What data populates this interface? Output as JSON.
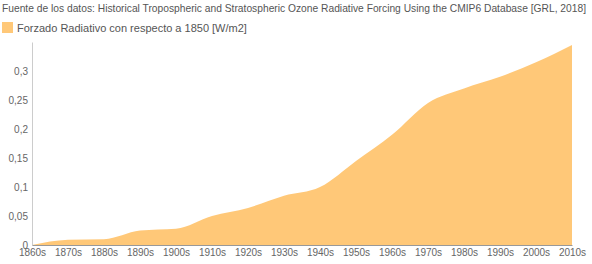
{
  "chart_data": {
    "type": "area",
    "title": "Fuente de los datos: Historical Tropospheric and Stratospheric Ozone Radiative Forcing Using the CMIP6 Database [GRL, 2018]",
    "categories": [
      "1860s",
      "1870s",
      "1880s",
      "1890s",
      "1900s",
      "1910s",
      "1920s",
      "1930s",
      "1940s",
      "1950s",
      "1960s",
      "1970s",
      "1980s",
      "1990s",
      "2000s",
      "2010s"
    ],
    "series": [
      {
        "name": "Forzado Radiativo con respecto a 1850 [W/m2]",
        "color": "#ffc878",
        "values": [
          0,
          0.009,
          0.01,
          0.025,
          0.028,
          0.05,
          0.064,
          0.085,
          0.1,
          0.145,
          0.19,
          0.245,
          0.27,
          0.29,
          0.315,
          0.345
        ]
      }
    ],
    "ylim": [
      0,
      0.35
    ],
    "yticks": [
      0,
      {
        "value": 0.05,
        "label": "0,05"
      },
      {
        "value": 0.1,
        "label": "0,1"
      },
      {
        "value": 0.15,
        "label": "0,15"
      },
      {
        "value": 0.2,
        "label": "0,2"
      },
      {
        "value": 0.25,
        "label": "0,25"
      },
      {
        "value": 0.3,
        "label": "0,3"
      }
    ],
    "grid": false,
    "legend": "top-left"
  }
}
